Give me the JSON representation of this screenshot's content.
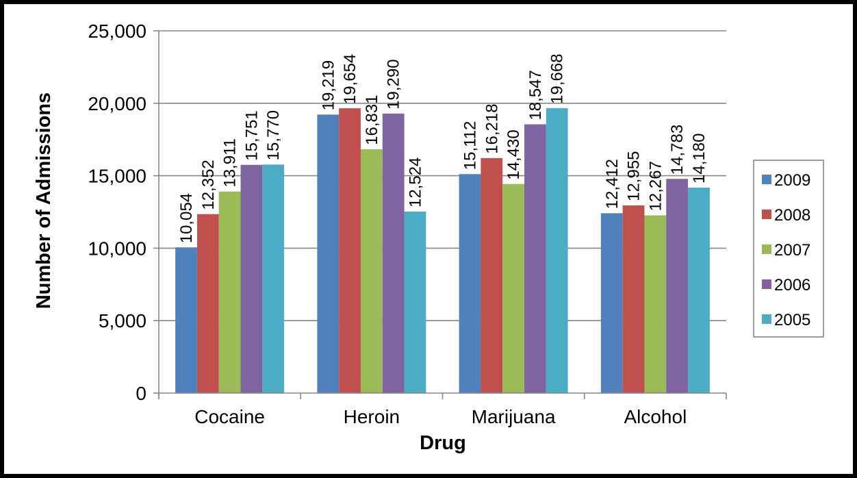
{
  "chart_data": {
    "type": "bar",
    "title": "",
    "xlabel": "Drug",
    "ylabel": "Number of Admissions",
    "categories": [
      "Cocaine",
      "Heroin",
      "Marijuana",
      "Alcohol"
    ],
    "ylim": [
      0,
      25000
    ],
    "yticks": [
      0,
      5000,
      10000,
      15000,
      20000,
      25000
    ],
    "ytick_labels": [
      "0",
      "5,000",
      "10,000",
      "15,000",
      "20,000",
      "25,000"
    ],
    "grid": true,
    "legend_position": "right",
    "series": [
      {
        "name": "2009",
        "color": "#4F81BD",
        "values": [
          10054,
          19219,
          15112,
          12412
        ],
        "labels": [
          "10,054",
          "19,219",
          "15,112",
          "12,412"
        ]
      },
      {
        "name": "2008",
        "color": "#C0504D",
        "values": [
          12352,
          19654,
          16218,
          12955
        ],
        "labels": [
          "12,352",
          "19,654",
          "16,218",
          "12,955"
        ]
      },
      {
        "name": "2007",
        "color": "#9BBB59",
        "values": [
          13911,
          16831,
          14430,
          12267
        ],
        "labels": [
          "13,911",
          "16,831",
          "14,430",
          "12,267"
        ]
      },
      {
        "name": "2006",
        "color": "#8064A2",
        "values": [
          15751,
          19290,
          18547,
          14783
        ],
        "labels": [
          "15,751",
          "19,290",
          "18,547",
          "14,783"
        ]
      },
      {
        "name": "2005",
        "color": "#4BACC6",
        "values": [
          15770,
          12524,
          19668,
          14180
        ],
        "labels": [
          "15,770",
          "12,524",
          "19,668",
          "14,180"
        ]
      }
    ]
  }
}
